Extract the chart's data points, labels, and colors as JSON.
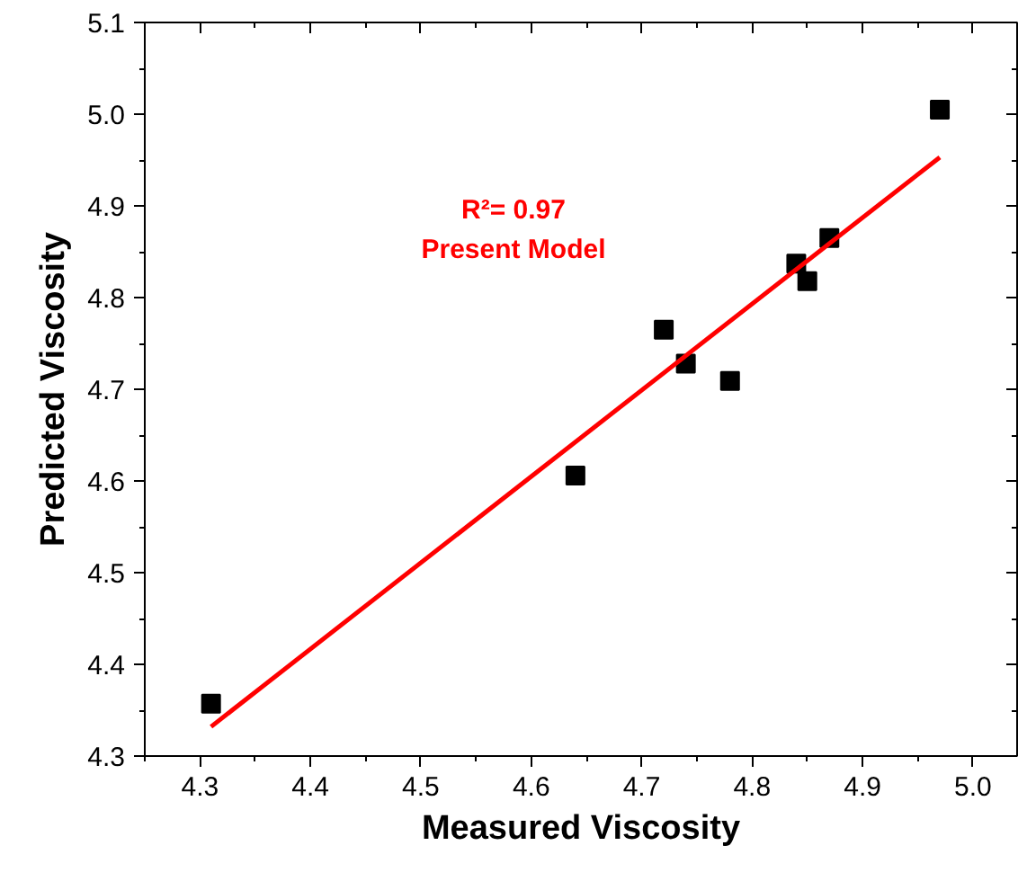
{
  "chart_data": {
    "type": "scatter",
    "xlabel": "Measured Viscosity",
    "ylabel": "Predicted Viscosity",
    "xlim": [
      4.25,
      5.04
    ],
    "ylim": [
      4.3,
      5.1
    ],
    "xticks": [
      4.3,
      4.4,
      4.5,
      4.6,
      4.7,
      4.8,
      4.9,
      {
        "value": 5,
        "label": "5.0"
      }
    ],
    "yticks": [
      4.3,
      4.4,
      4.5,
      4.6,
      4.7,
      4.8,
      4.9,
      {
        "value": 5,
        "label": "5.0"
      },
      5.1
    ],
    "marker": "square",
    "grid": false,
    "annotations": [
      "R²= 0.97",
      "Present Model"
    ],
    "series": [
      {
        "color": "#000000",
        "x": [
          4.31,
          4.64,
          4.72,
          4.74,
          4.78,
          4.84,
          4.85,
          4.87,
          4.97
        ],
        "values": [
          4.357,
          4.606,
          4.765,
          4.728,
          4.709,
          4.837,
          4.818,
          4.865,
          5.005
        ]
      },
      {
        "type": "line",
        "marker": "none",
        "color": "#ff0000",
        "x": [
          4.31,
          4.97
        ],
        "values": [
          4.332,
          4.953
        ]
      }
    ]
  }
}
